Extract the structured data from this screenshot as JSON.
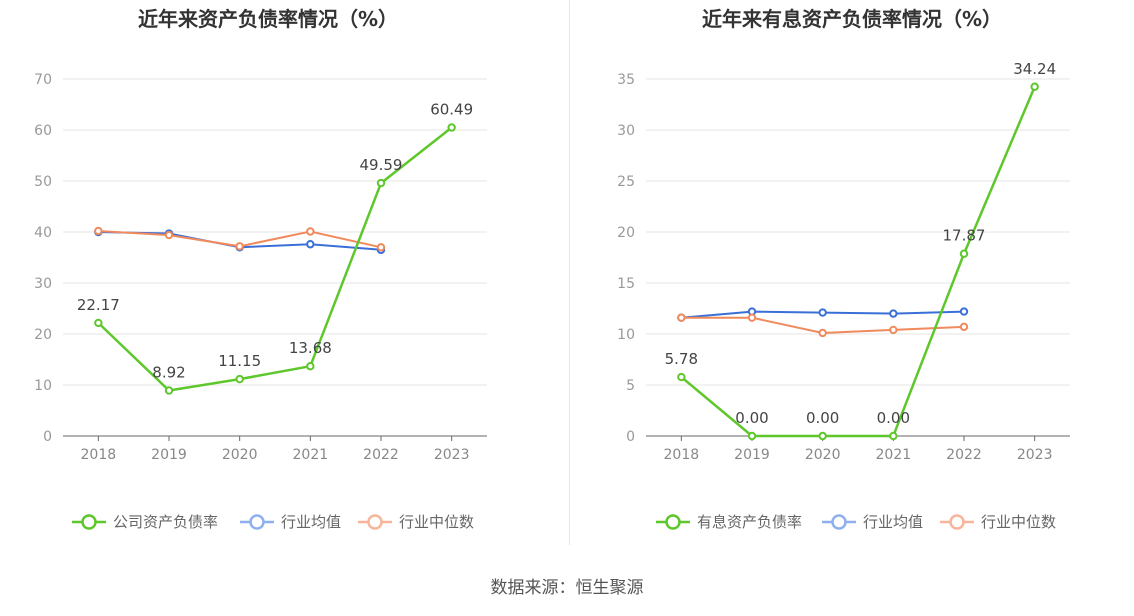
{
  "source": "数据来源：恒生聚源",
  "chart_data": [
    {
      "type": "line",
      "title": "近年来资产负债率情况（%）",
      "categories": [
        "2018",
        "2019",
        "2020",
        "2021",
        "2022",
        "2023"
      ],
      "ylim": [
        0,
        70
      ],
      "yticks": [
        0,
        10,
        20,
        30,
        40,
        50,
        60,
        70
      ],
      "grid": true,
      "legend_position": "bottom",
      "series": [
        {
          "name": "公司资产负债率",
          "color": "#5ec72b",
          "values": [
            22.17,
            8.92,
            11.15,
            13.68,
            49.59,
            60.49
          ],
          "labels": [
            "22.17",
            "8.92",
            "11.15",
            "13.68",
            "49.59",
            "60.49"
          ]
        },
        {
          "name": "行业均值",
          "color": "#3a6fd8",
          "legend_color": "#8fb0ef",
          "values": [
            40.0,
            39.7,
            37.0,
            37.6,
            36.5,
            null
          ]
        },
        {
          "name": "行业中位数",
          "color": "#f08a5d",
          "legend_color": "#f7b59b",
          "values": [
            40.2,
            39.4,
            37.2,
            40.1,
            37.0,
            null
          ]
        }
      ]
    },
    {
      "type": "line",
      "title": "近年来有息资产负债率情况（%）",
      "categories": [
        "2018",
        "2019",
        "2020",
        "2021",
        "2022",
        "2023"
      ],
      "ylim": [
        0,
        35
      ],
      "yticks": [
        0,
        5,
        10,
        15,
        20,
        25,
        30,
        35
      ],
      "grid": true,
      "legend_position": "bottom",
      "series": [
        {
          "name": "有息资产负债率",
          "color": "#5ec72b",
          "values": [
            5.78,
            0.0,
            0.0,
            0.0,
            17.87,
            34.24
          ],
          "labels": [
            "5.78",
            "0.00",
            "0.00",
            "0.00",
            "17.87",
            "34.24"
          ]
        },
        {
          "name": "行业均值",
          "color": "#3a6fd8",
          "legend_color": "#8fb0ef",
          "values": [
            11.6,
            12.2,
            12.1,
            12.0,
            12.2,
            null
          ]
        },
        {
          "name": "行业中位数",
          "color": "#f08a5d",
          "legend_color": "#f7b59b",
          "values": [
            11.6,
            11.6,
            10.1,
            10.4,
            10.7,
            null
          ]
        }
      ]
    }
  ]
}
